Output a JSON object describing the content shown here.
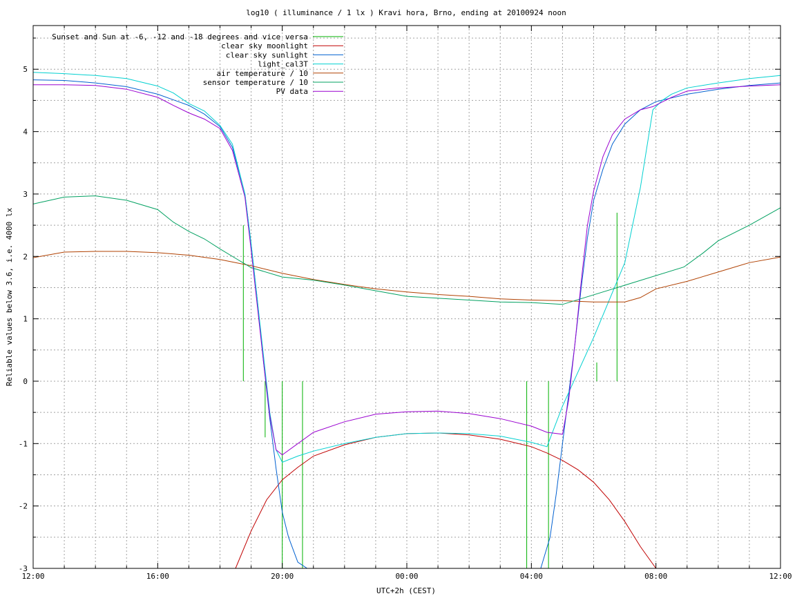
{
  "chart_data": {
    "type": "line",
    "title": "log10 ( illuminance / 1 lx ) Kravi hora, Brno, ending at 20100924 noon",
    "xlabel": "UTC+2h (CEST)",
    "ylabel": "Reliable values below 3.6, i.e. 4000 lx",
    "xlim": [
      0,
      24
    ],
    "ylim": [
      -3,
      5.7
    ],
    "x_unit": "hours since 12:00 (UTC+2h)",
    "x_ticks": [
      {
        "x": 0,
        "label": "12:00"
      },
      {
        "x": 4,
        "label": "16:00"
      },
      {
        "x": 8,
        "label": "20:00"
      },
      {
        "x": 12,
        "label": "00:00"
      },
      {
        "x": 16,
        "label": "04:00"
      },
      {
        "x": 20,
        "label": "08:00"
      },
      {
        "x": 24,
        "label": "12:00"
      }
    ],
    "y_ticks": [
      {
        "y": -3,
        "label": "-3"
      },
      {
        "y": -2,
        "label": "-2"
      },
      {
        "y": -1,
        "label": "-1"
      },
      {
        "y": 0,
        "label": "0"
      },
      {
        "y": 1,
        "label": "1"
      },
      {
        "y": 2,
        "label": "2"
      },
      {
        "y": 3,
        "label": "3"
      },
      {
        "y": 4,
        "label": "4"
      },
      {
        "y": 5,
        "label": "5"
      }
    ],
    "grid": true,
    "legend_position": "top-left",
    "series": [
      {
        "name": "Sunset and Sun at -6, -12 and -18 degrees and vice versa",
        "color": "#00b000",
        "style": "impulses",
        "impulses": [
          {
            "x": 6.75,
            "from": 0,
            "to": 2.5
          },
          {
            "x": 7.45,
            "from": 0,
            "to": -0.9
          },
          {
            "x": 8.0,
            "from": 0,
            "to": -3
          },
          {
            "x": 8.65,
            "from": 0,
            "to": -3
          },
          {
            "x": 15.85,
            "from": 0,
            "to": -3
          },
          {
            "x": 16.55,
            "from": 0,
            "to": -3
          },
          {
            "x": 18.1,
            "from": 0,
            "to": 0.3
          },
          {
            "x": 18.75,
            "from": 0,
            "to": 2.7
          }
        ]
      },
      {
        "name": "clear sky moonlight",
        "color": "#c00000",
        "x": [
          6.5,
          7.0,
          7.5,
          8.0,
          8.5,
          9.0,
          10.0,
          11.0,
          12.0,
          13.0,
          14.0,
          15.0,
          16.0,
          16.5,
          17.0,
          17.5,
          18.0,
          18.5,
          19.0,
          19.5,
          20.0
        ],
        "y": [
          -3.0,
          -2.4,
          -1.9,
          -1.58,
          -1.38,
          -1.2,
          -1.02,
          -0.9,
          -0.84,
          -0.83,
          -0.86,
          -0.93,
          -1.05,
          -1.15,
          -1.27,
          -1.42,
          -1.62,
          -1.9,
          -2.25,
          -2.65,
          -3.0
        ]
      },
      {
        "name": "clear sky sunlight",
        "color": "#0060d0",
        "x": [
          0,
          1.0,
          2.0,
          3.0,
          4.0,
          5.0,
          5.5,
          6.0,
          6.4,
          6.8,
          7.0,
          7.2,
          7.4,
          7.6,
          7.8,
          8.0,
          8.2,
          8.5,
          8.8,
          16.3,
          16.6,
          16.8,
          17.0,
          17.2,
          17.4,
          17.6,
          17.8,
          18.0,
          18.3,
          18.6,
          19.0,
          19.5,
          20.0,
          21.0,
          22.0,
          23.0,
          24.0
        ],
        "y": [
          4.83,
          4.82,
          4.78,
          4.72,
          4.6,
          4.42,
          4.28,
          4.08,
          3.75,
          3.0,
          2.2,
          1.3,
          0.3,
          -0.6,
          -1.4,
          -2.1,
          -2.5,
          -2.9,
          -3.0,
          -3.0,
          -2.5,
          -1.8,
          -1.0,
          -0.2,
          0.6,
          1.5,
          2.3,
          2.9,
          3.4,
          3.8,
          4.12,
          4.35,
          4.48,
          4.6,
          4.68,
          4.74,
          4.78
        ]
      },
      {
        "name": "light_cal3T",
        "color": "#00d0d0",
        "x": [
          0,
          1.0,
          2.0,
          3.0,
          4.0,
          4.5,
          5.0,
          5.5,
          6.0,
          6.4,
          6.8,
          7.0,
          7.2,
          7.4,
          7.6,
          7.8,
          8.0,
          8.5,
          9.0,
          10.0,
          11.0,
          12.0,
          13.0,
          14.0,
          15.0,
          16.0,
          16.5,
          17.0,
          18.0,
          19.0,
          19.5,
          19.9,
          20.2,
          20.5,
          21.0,
          22.0,
          23.0,
          24.0
        ],
        "y": [
          4.95,
          4.93,
          4.9,
          4.85,
          4.73,
          4.62,
          4.45,
          4.33,
          4.1,
          3.8,
          3.0,
          2.2,
          1.3,
          0.4,
          -0.5,
          -1.1,
          -1.3,
          -1.2,
          -1.12,
          -1.0,
          -0.9,
          -0.84,
          -0.83,
          -0.84,
          -0.88,
          -0.98,
          -1.05,
          -0.4,
          0.7,
          1.9,
          3.1,
          4.35,
          4.5,
          4.6,
          4.7,
          4.78,
          4.85,
          4.9
        ]
      },
      {
        "name": "air temperature / 10",
        "color": "#b04000",
        "x": [
          0,
          1.0,
          2.0,
          3.0,
          4.0,
          5.0,
          6.0,
          7.0,
          8.0,
          9.0,
          10.0,
          11.0,
          12.0,
          13.0,
          14.0,
          15.0,
          16.0,
          17.0,
          18.0,
          19.0,
          19.5,
          20.0,
          21.0,
          22.0,
          23.0,
          24.0
        ],
        "y": [
          1.98,
          2.07,
          2.08,
          2.08,
          2.06,
          2.02,
          1.95,
          1.85,
          1.73,
          1.63,
          1.55,
          1.48,
          1.43,
          1.39,
          1.36,
          1.32,
          1.3,
          1.29,
          1.27,
          1.27,
          1.34,
          1.48,
          1.6,
          1.75,
          1.9,
          1.99
        ]
      },
      {
        "name": "sensor temperature / 10",
        "color": "#00a060",
        "x": [
          0,
          1.0,
          2.0,
          3.0,
          4.0,
          4.5,
          5.0,
          5.5,
          6.0,
          6.5,
          7.0,
          8.0,
          9.0,
          10.0,
          11.0,
          12.0,
          13.0,
          14.0,
          15.0,
          16.0,
          17.0,
          20.9,
          21.5,
          22.0,
          23.0,
          24.0
        ],
        "y": [
          2.84,
          2.95,
          2.97,
          2.9,
          2.75,
          2.55,
          2.4,
          2.28,
          2.12,
          1.97,
          1.82,
          1.67,
          1.62,
          1.54,
          1.45,
          1.36,
          1.33,
          1.3,
          1.27,
          1.26,
          1.23,
          1.83,
          2.05,
          2.25,
          2.5,
          2.78
        ]
      },
      {
        "name": "PV data",
        "color": "#9900d0",
        "x": [
          0,
          1.0,
          2.0,
          3.0,
          4.0,
          4.5,
          5.0,
          5.5,
          6.0,
          6.4,
          6.8,
          7.0,
          7.2,
          7.4,
          7.6,
          7.8,
          8.0,
          8.5,
          9.0,
          10.0,
          11.0,
          12.0,
          13.0,
          14.0,
          15.0,
          16.0,
          16.5,
          17.0,
          17.2,
          17.4,
          17.6,
          17.8,
          18.0,
          18.3,
          18.6,
          19.0,
          19.5,
          19.9,
          20.5,
          21.0,
          22.0,
          23.0,
          24.0
        ],
        "y": [
          4.75,
          4.75,
          4.74,
          4.68,
          4.55,
          4.42,
          4.3,
          4.2,
          4.05,
          3.7,
          2.95,
          2.1,
          1.2,
          0.3,
          -0.55,
          -1.1,
          -1.18,
          -1.0,
          -0.82,
          -0.65,
          -0.53,
          -0.49,
          -0.48,
          -0.52,
          -0.6,
          -0.72,
          -0.82,
          -0.85,
          -0.3,
          0.6,
          1.6,
          2.5,
          3.05,
          3.6,
          3.95,
          4.2,
          4.35,
          4.4,
          4.55,
          4.65,
          4.7,
          4.73,
          4.75
        ]
      }
    ]
  }
}
